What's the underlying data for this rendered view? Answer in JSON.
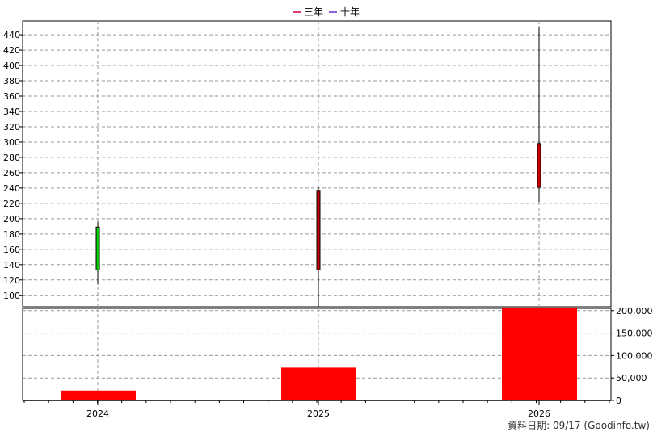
{
  "legend": [
    {
      "label": "三年",
      "color": "#cc0033"
    },
    {
      "label": "十年",
      "color": "#6633cc"
    }
  ],
  "footer": "資料日期: 09/17  (Goodinfo.tw)",
  "chart_data": [
    {
      "type": "candlestick",
      "x": [
        "2024",
        "2025",
        "2026"
      ],
      "candles": [
        {
          "x": "2024",
          "open": 133,
          "close": 189,
          "high": 196,
          "low": 114,
          "color": "#00cc00"
        },
        {
          "x": "2025",
          "open": 133,
          "close": 237,
          "high": 242,
          "low": 85,
          "color": "#cc0000"
        },
        {
          "x": "2026",
          "open": 241,
          "close": 298,
          "high": 451,
          "low": 222,
          "color": "#cc0000"
        }
      ],
      "y_ticks": [
        100,
        120,
        140,
        160,
        180,
        200,
        220,
        240,
        260,
        280,
        300,
        320,
        340,
        360,
        380,
        400,
        420,
        440
      ],
      "ylim": [
        85,
        458
      ],
      "grid": true
    },
    {
      "type": "bar",
      "categories": [
        "2024",
        "2025",
        "2026"
      ],
      "values": [
        22000,
        73000,
        207000
      ],
      "color": "#ff0000",
      "y_ticks": [
        {
          "value": 0,
          "label": "0"
        },
        {
          "value": 50000,
          "label": "50,000"
        },
        {
          "value": 100000,
          "label": "100,000"
        },
        {
          "value": 150000,
          "label": "150,000"
        },
        {
          "value": 200000,
          "label": "200,000"
        }
      ],
      "ylim": [
        0,
        205000
      ],
      "axis_side": "right",
      "grid": true
    }
  ]
}
